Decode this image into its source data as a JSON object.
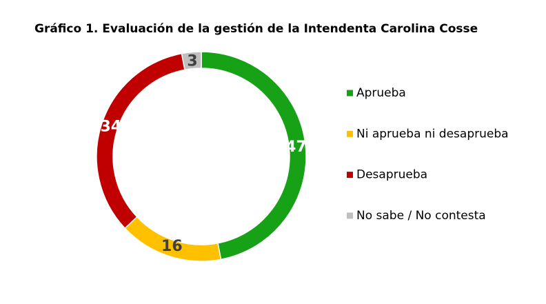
{
  "chart_data": {
    "type": "donut",
    "title": "Gráfico 1. Evaluación de la gestión de la Intendenta Carolina Cosse",
    "categories": [
      "Aprueba",
      "Ni aprueba ni desaprueba",
      "Desaprueba",
      "No sabe / No contesta"
    ],
    "values": [
      47,
      16,
      34,
      3
    ],
    "colors": [
      "#17a117",
      "#ffc000",
      "#c00000",
      "#bfbfbf"
    ],
    "label_colors": [
      "#ffffff",
      "#404040",
      "#ffffff",
      "#404040"
    ],
    "legend": "right"
  }
}
